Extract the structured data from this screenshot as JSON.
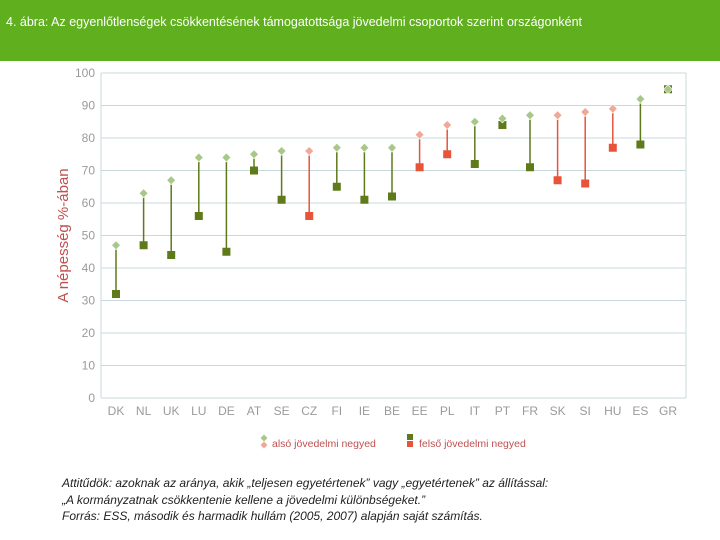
{
  "header": {
    "title": "4. ábra: Az egyenlőtlenségek csökkentésének támogatottsága jövedelmi csoportok szerint országonként",
    "color": "#5faf1e"
  },
  "chart_data": {
    "type": "scatter",
    "title": "4. ábra: Az egyenlőtlenségek csökkentésének támogatottsága jövedelmi csoportok szerint országonként",
    "xlabel": "",
    "ylabel": "A népesség %-ában",
    "ylim": [
      0,
      100
    ],
    "yticks": [
      0,
      10,
      20,
      30,
      40,
      50,
      60,
      70,
      80,
      90,
      100
    ],
    "grid": true,
    "legend_position": "bottom",
    "categories": [
      "DK",
      "NL",
      "UK",
      "LU",
      "DE",
      "AT",
      "SE",
      "CZ",
      "FI",
      "IE",
      "BE",
      "EE",
      "PL",
      "IT",
      "PT",
      "FR",
      "SK",
      "SI",
      "HU",
      "ES",
      "GR"
    ],
    "highlighted_categories": [
      "CZ",
      "EE",
      "PL",
      "SK",
      "SI",
      "HU"
    ],
    "series": [
      {
        "name": "alsó jövedelmi negyed",
        "marker": "diamond",
        "values": [
          47,
          63,
          67,
          74,
          74,
          75,
          76,
          76,
          77,
          77,
          77,
          81,
          84,
          85,
          86,
          87,
          87,
          88,
          89,
          92,
          95
        ]
      },
      {
        "name": "felső jövedelmi negyed",
        "marker": "square",
        "values": [
          32,
          47,
          44,
          56,
          45,
          70,
          61,
          56,
          65,
          61,
          62,
          71,
          75,
          72,
          84,
          71,
          67,
          66,
          77,
          78,
          95
        ]
      }
    ],
    "colors": {
      "green_low": "#a8c88a",
      "green_high": "#5e7a1a",
      "red_low": "#f0a898",
      "red_high": "#e8543a",
      "line_green": "#5e7a1a",
      "line_red": "#e8543a",
      "axis_text": "#9a9a9a",
      "grid": "#c8d8dd",
      "ylabel": "#c05050"
    }
  },
  "notes": {
    "line1": "Attitűdök: azoknak az aránya, akik „teljesen egyetértenek” vagy „egyetértenek” az állítással:",
    "line2": "„A kormányzatnak csökkentenie kellene a jövedelmi különbségeket.”",
    "line3": "Forrás: ESS, második és harmadik hullám (2005, 2007) alapján saját számítás."
  }
}
